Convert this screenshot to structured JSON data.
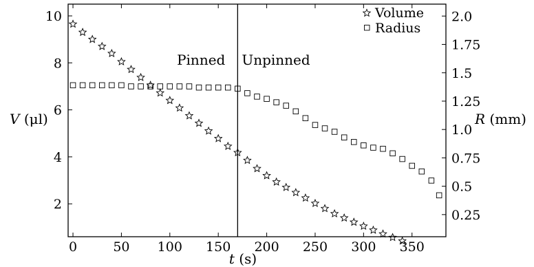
{
  "chart_data": {
    "type": "scatter",
    "x_axis": {
      "label_var": "t",
      "label_unit": "(s)",
      "range": [
        -5,
        385
      ],
      "ticks": [
        0,
        50,
        100,
        150,
        200,
        250,
        300,
        350
      ],
      "tick_labels": [
        "0",
        "50",
        "100",
        "150",
        "200",
        "250",
        "300",
        "350"
      ]
    },
    "y_left": {
      "label_var": "V",
      "label_unit": "(μl)",
      "range": [
        0.6,
        10.5
      ],
      "ticks": [
        2,
        4,
        6,
        8,
        10
      ],
      "tick_labels": [
        "2",
        "4",
        "6",
        "8",
        "10"
      ]
    },
    "y_right": {
      "label_var": "R",
      "label_unit": "(mm)",
      "range": [
        0.055,
        2.105
      ],
      "ticks": [
        0.25,
        0.5,
        0.75,
        1.0,
        1.25,
        1.5,
        1.75,
        2.0
      ],
      "tick_labels": [
        "0.25",
        "0.5",
        "0.75",
        "1.0",
        "1.25",
        "1.5",
        "1.75",
        "2.0"
      ]
    },
    "vline": {
      "x": 170
    },
    "annotations": [
      {
        "text": "Pinned",
        "side": "left"
      },
      {
        "text": "Unpinned",
        "side": "right"
      }
    ],
    "legend": {
      "position": "top-right",
      "entries": [
        {
          "label": "Volume",
          "marker": "star"
        },
        {
          "label": "Radius",
          "marker": "square"
        }
      ]
    },
    "series": [
      {
        "name": "Volume",
        "axis": "left",
        "marker": "star",
        "x": [
          0,
          10,
          20,
          30,
          40,
          50,
          60,
          70,
          80,
          90,
          100,
          110,
          120,
          130,
          140,
          150,
          160,
          170,
          180,
          190,
          200,
          210,
          220,
          230,
          240,
          250,
          260,
          270,
          280,
          290,
          300,
          310,
          320,
          330,
          340
        ],
        "y": [
          9.65,
          9.3,
          9.0,
          8.7,
          8.4,
          8.05,
          7.72,
          7.38,
          7.05,
          6.72,
          6.4,
          6.08,
          5.75,
          5.43,
          5.1,
          4.78,
          4.45,
          4.18,
          3.85,
          3.5,
          3.2,
          2.93,
          2.7,
          2.48,
          2.25,
          2.02,
          1.8,
          1.58,
          1.4,
          1.22,
          1.05,
          0.88,
          0.72,
          0.57,
          0.42
        ]
      },
      {
        "name": "Radius",
        "axis": "right",
        "marker": "square",
        "x": [
          0,
          10,
          20,
          30,
          40,
          50,
          60,
          70,
          80,
          90,
          100,
          110,
          120,
          130,
          140,
          150,
          160,
          170,
          180,
          190,
          200,
          210,
          220,
          230,
          240,
          250,
          260,
          270,
          280,
          290,
          300,
          310,
          320,
          330,
          340,
          350,
          360,
          370,
          378
        ],
        "y": [
          1.39,
          1.39,
          1.39,
          1.39,
          1.39,
          1.39,
          1.38,
          1.38,
          1.38,
          1.38,
          1.38,
          1.38,
          1.38,
          1.37,
          1.37,
          1.37,
          1.37,
          1.36,
          1.32,
          1.29,
          1.27,
          1.24,
          1.21,
          1.16,
          1.1,
          1.04,
          1.01,
          0.98,
          0.93,
          0.89,
          0.86,
          0.84,
          0.83,
          0.79,
          0.74,
          0.68,
          0.63,
          0.55,
          0.42
        ]
      }
    ]
  }
}
